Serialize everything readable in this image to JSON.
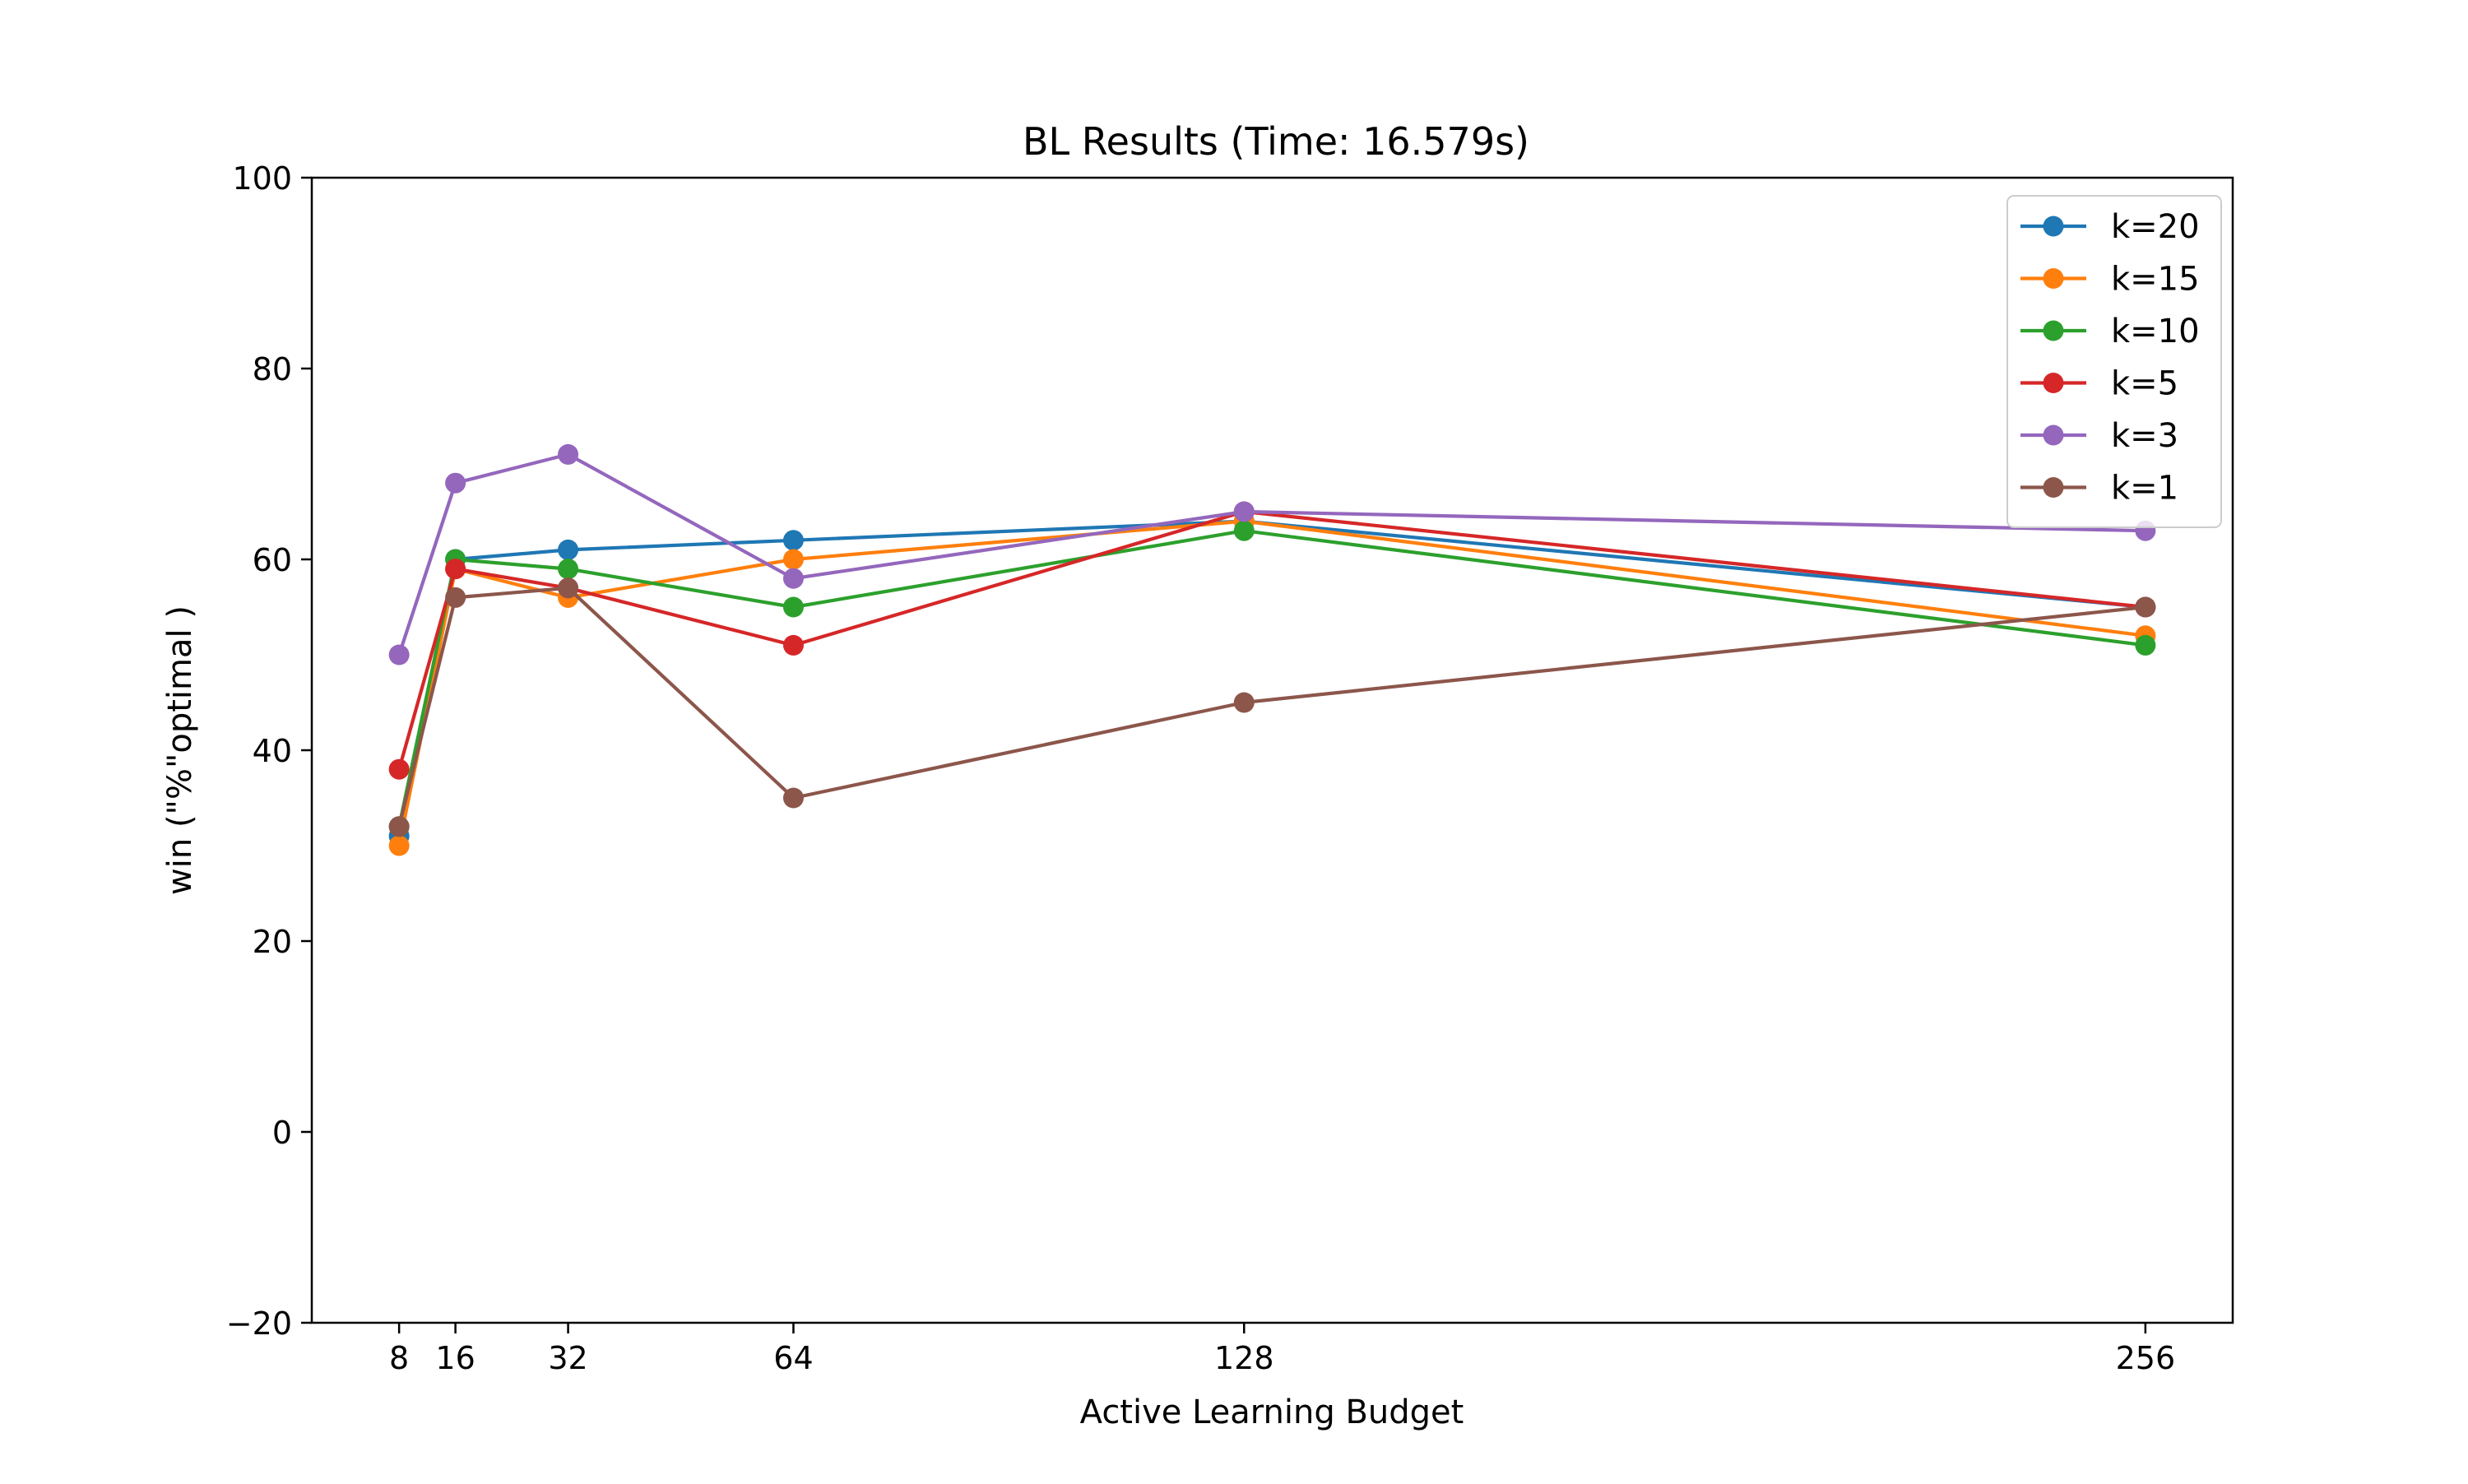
{
  "chart_data": {
    "type": "line",
    "title": "BL Results (Time: 16.579s)",
    "xlabel": "Active Learning Budget",
    "ylabel": "win (\"%\"optimal )",
    "x": [
      8,
      16,
      32,
      64,
      128,
      256
    ],
    "xticks": [
      "8",
      "16",
      "32",
      "64",
      "128",
      "256"
    ],
    "yticks": [
      "−20",
      "0",
      "20",
      "40",
      "60",
      "80",
      "100"
    ],
    "ylim": [
      -20,
      100
    ],
    "xlim": [
      -4.4,
      268.4
    ],
    "grid": false,
    "legend_position": "top-right",
    "markers": true,
    "series": [
      {
        "name": "k=20",
        "color": "#1f77b4",
        "values": [
          31,
          60,
          61,
          62,
          64,
          55
        ]
      },
      {
        "name": "k=15",
        "color": "#ff7f0e",
        "values": [
          30,
          59,
          56,
          60,
          64,
          52
        ]
      },
      {
        "name": "k=10",
        "color": "#2ca02c",
        "values": [
          32,
          60,
          59,
          55,
          63,
          51
        ]
      },
      {
        "name": "k=5",
        "color": "#d62728",
        "values": [
          38,
          59,
          57,
          51,
          65,
          55
        ]
      },
      {
        "name": "k=3",
        "color": "#9467bd",
        "values": [
          50,
          68,
          71,
          58,
          65,
          63
        ]
      },
      {
        "name": "k=1",
        "color": "#8c564b",
        "values": [
          32,
          56,
          57,
          35,
          45,
          55
        ]
      }
    ]
  }
}
